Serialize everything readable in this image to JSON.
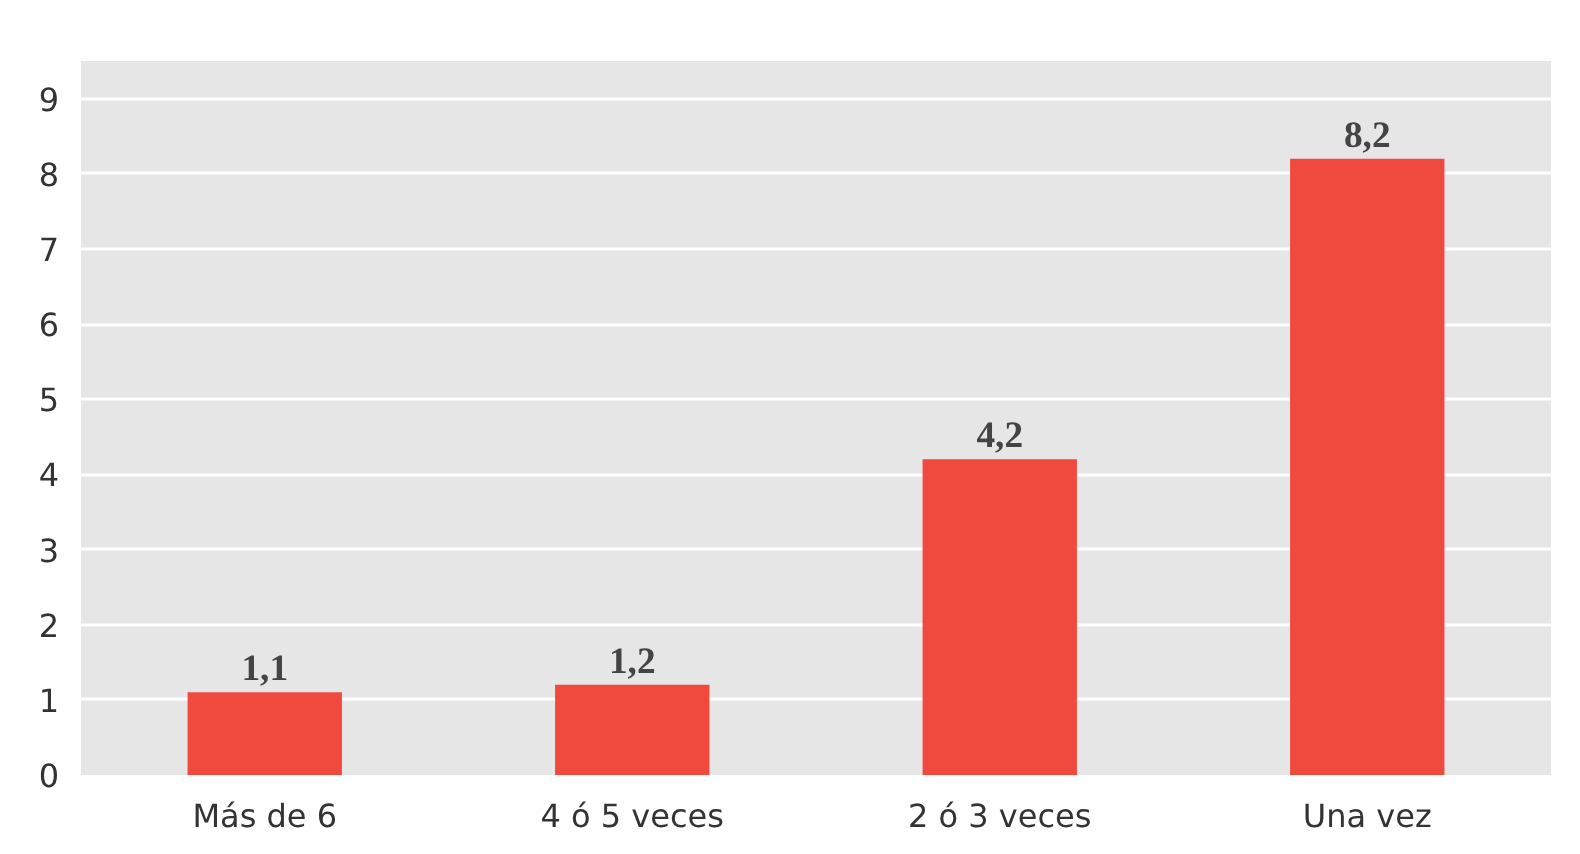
{
  "chart_data": {
    "type": "bar",
    "categories": [
      "Más de 6",
      "4 ó 5 veces",
      "2 ó 3 veces",
      "Una vez"
    ],
    "values": [
      1.1,
      1.2,
      4.2,
      8.2
    ],
    "value_labels": [
      "1,1",
      "1,2",
      "4,2",
      "8,2"
    ],
    "color": "#f04a3e",
    "ylim": [
      0,
      9.5
    ],
    "yticks": [
      0,
      1,
      2,
      3,
      4,
      5,
      6,
      7,
      8,
      9
    ],
    "grid": "y"
  }
}
